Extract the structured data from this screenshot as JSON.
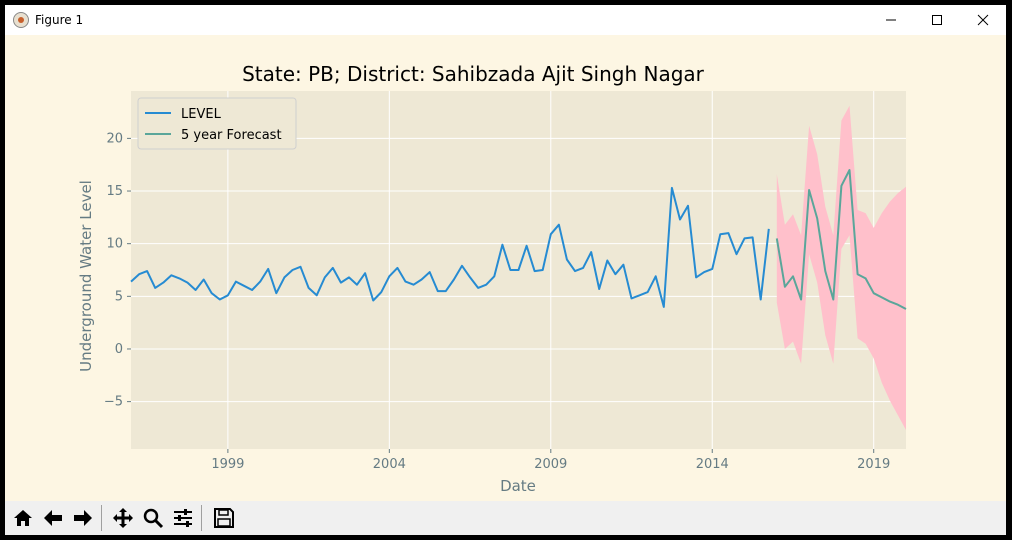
{
  "window": {
    "title": "Figure 1",
    "minimize_icon": "minimize-icon",
    "maximize_icon": "maximize-icon",
    "close_icon": "close-icon"
  },
  "toolbar": {
    "buttons": [
      {
        "name": "home-button",
        "icon": "home-icon",
        "glyph": "⌂"
      },
      {
        "name": "back-button",
        "icon": "arrow-left-icon",
        "glyph": "⇦"
      },
      {
        "name": "forward-button",
        "icon": "arrow-right-icon",
        "glyph": "⇨"
      },
      {
        "name": "pan-button",
        "icon": "move-icon",
        "glyph": "✥"
      },
      {
        "name": "zoom-button",
        "icon": "magnifier-icon",
        "glyph": "🔍"
      },
      {
        "name": "configure-subplots-button",
        "icon": "sliders-icon",
        "glyph": "☰"
      },
      {
        "name": "save-button",
        "icon": "floppy-disk-icon",
        "glyph": "💾"
      }
    ]
  },
  "chart_data": {
    "type": "line",
    "title": "State: PB;  District: Sahibzada Ajit Singh Nagar",
    "xlabel": "Date",
    "ylabel": "Underground Water Level",
    "xlim": [
      1996.0,
      2020.0
    ],
    "ylim": [
      -9.5,
      24.5
    ],
    "xticks": [
      1999,
      2004,
      2009,
      2014,
      2019
    ],
    "xtick_labels": [
      "1999",
      "2004",
      "2009",
      "2014",
      "2019"
    ],
    "yticks": [
      -5,
      0,
      5,
      10,
      15,
      20
    ],
    "ytick_labels": [
      "−5",
      "0",
      "5",
      "10",
      "15",
      "20"
    ],
    "grid": true,
    "legend": {
      "position": "top-left",
      "entries": [
        "LEVEL",
        "5 year Forecast"
      ]
    },
    "colors": {
      "level": "#268bd2",
      "forecast": "#5aa69a",
      "band": "#ffc0cb",
      "axes_bg": "#eee8d5",
      "fig_bg": "#fdf6e3",
      "text": "#657b83"
    },
    "series": [
      {
        "name": "LEVEL",
        "x": [
          1996.0,
          1996.25,
          1996.5,
          1996.75,
          1997.0,
          1997.25,
          1997.5,
          1997.75,
          1998.0,
          1998.25,
          1998.5,
          1998.75,
          1999.0,
          1999.25,
          1999.5,
          1999.75,
          2000.0,
          2000.25,
          2000.5,
          2000.75,
          2001.0,
          2001.25,
          2001.5,
          2001.75,
          2002.0,
          2002.25,
          2002.5,
          2002.75,
          2003.0,
          2003.25,
          2003.5,
          2003.75,
          2004.0,
          2004.25,
          2004.5,
          2004.75,
          2005.0,
          2005.25,
          2005.5,
          2005.75,
          2006.0,
          2006.25,
          2006.5,
          2006.75,
          2007.0,
          2007.25,
          2007.5,
          2007.75,
          2008.0,
          2008.25,
          2008.5,
          2008.75,
          2009.0,
          2009.25,
          2009.5,
          2009.75,
          2010.0,
          2010.25,
          2010.5,
          2010.75,
          2011.0,
          2011.25,
          2011.5,
          2011.75,
          2012.0,
          2012.25,
          2012.5,
          2012.75,
          2013.0,
          2013.25,
          2013.5,
          2013.75,
          2014.0,
          2014.25,
          2014.5,
          2014.75,
          2015.0,
          2015.25,
          2015.5,
          2015.75
        ],
        "values": [
          6.4,
          7.1,
          7.4,
          5.8,
          6.3,
          7.0,
          6.7,
          6.3,
          5.6,
          6.6,
          5.3,
          4.7,
          5.1,
          6.4,
          6.0,
          5.6,
          6.4,
          7.6,
          5.3,
          6.8,
          7.5,
          7.8,
          5.8,
          5.1,
          6.8,
          7.7,
          6.3,
          6.8,
          6.1,
          7.2,
          4.6,
          5.4,
          6.9,
          7.7,
          6.4,
          6.1,
          6.6,
          7.3,
          5.5,
          5.5,
          6.6,
          7.9,
          6.8,
          5.8,
          6.1,
          6.9,
          9.9,
          7.5,
          7.5,
          9.8,
          7.4,
          7.5,
          10.9,
          11.8,
          8.5,
          7.4,
          7.7,
          9.2,
          5.7,
          8.4,
          7.1,
          8.0,
          4.8,
          5.1,
          5.4,
          6.9,
          4.0,
          15.3,
          12.3,
          13.6,
          6.8,
          7.3,
          7.6,
          10.9,
          11.0,
          9.0,
          10.5,
          10.6,
          4.7,
          11.4
        ]
      },
      {
        "name": "5 year Forecast",
        "x": [
          2016.0,
          2016.25,
          2016.5,
          2016.75,
          2017.0,
          2017.25,
          2017.5,
          2017.75,
          2018.0,
          2018.25,
          2018.5,
          2018.75,
          2019.0,
          2019.25,
          2019.5,
          2019.75,
          2020.0
        ],
        "values": [
          10.5,
          5.9,
          6.9,
          4.7,
          15.1,
          12.4,
          7.4,
          4.7,
          15.5,
          17.0,
          7.1,
          6.7,
          5.3,
          4.9,
          4.5,
          4.2,
          3.8
        ],
        "lower": [
          4.4,
          0.0,
          0.7,
          -1.4,
          9.0,
          6.3,
          1.3,
          -1.4,
          9.5,
          10.8,
          1.0,
          0.5,
          -0.9,
          -3.2,
          -4.9,
          -6.3,
          -7.7
        ],
        "upper": [
          16.6,
          11.8,
          12.8,
          10.8,
          21.2,
          18.5,
          13.5,
          10.8,
          21.7,
          23.1,
          13.2,
          12.9,
          11.5,
          12.9,
          14.0,
          14.8,
          15.4
        ]
      }
    ]
  }
}
